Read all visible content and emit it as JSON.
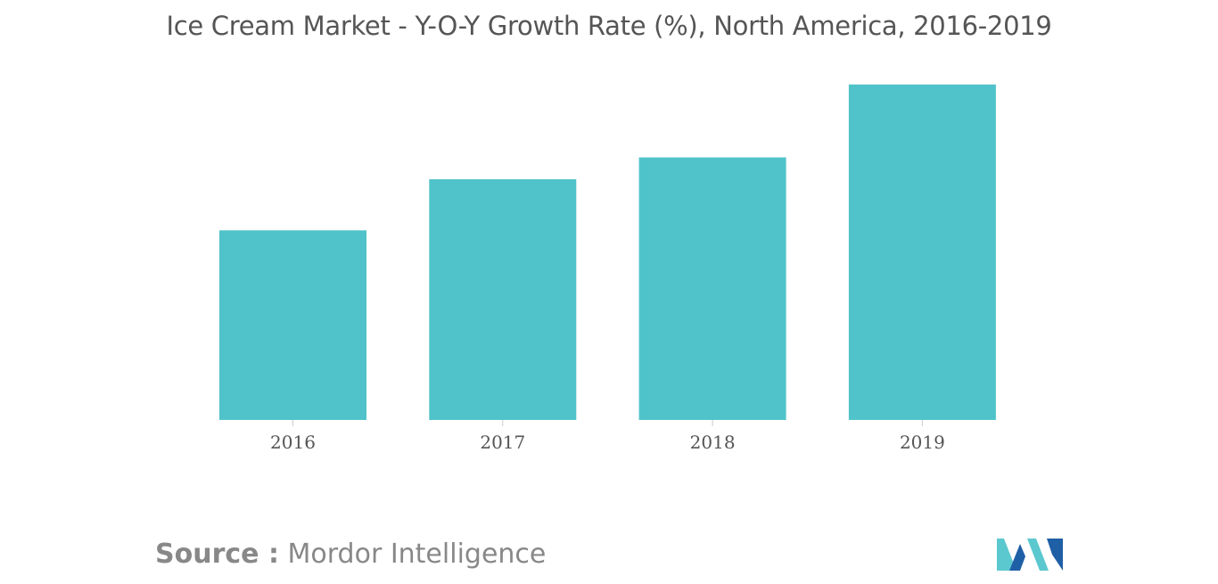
{
  "title": "Ice Cream Market - Y-O-Y Growth Rate (%), North America, 2016-2019",
  "source": {
    "label": "Source :",
    "text": "Mordor Intelligence"
  },
  "colors": {
    "bar": "#50c3ca",
    "axis": "#cccccc",
    "logo_dark": "#1f5fa6",
    "logo_light": "#5bc8cf"
  },
  "logo": {
    "icon": "mordor-intelligence-logo-icon"
  },
  "chart_data": {
    "type": "bar",
    "categories": [
      "2016",
      "2017",
      "2018",
      "2019"
    ],
    "values": [
      5.2,
      6.6,
      7.2,
      9.2
    ],
    "title": "Ice Cream Market - Y-O-Y Growth Rate (%), North America, 2016-2019",
    "xlabel": "",
    "ylabel": "",
    "ylim": [
      0,
      10
    ],
    "grid": false,
    "legend": "none"
  }
}
